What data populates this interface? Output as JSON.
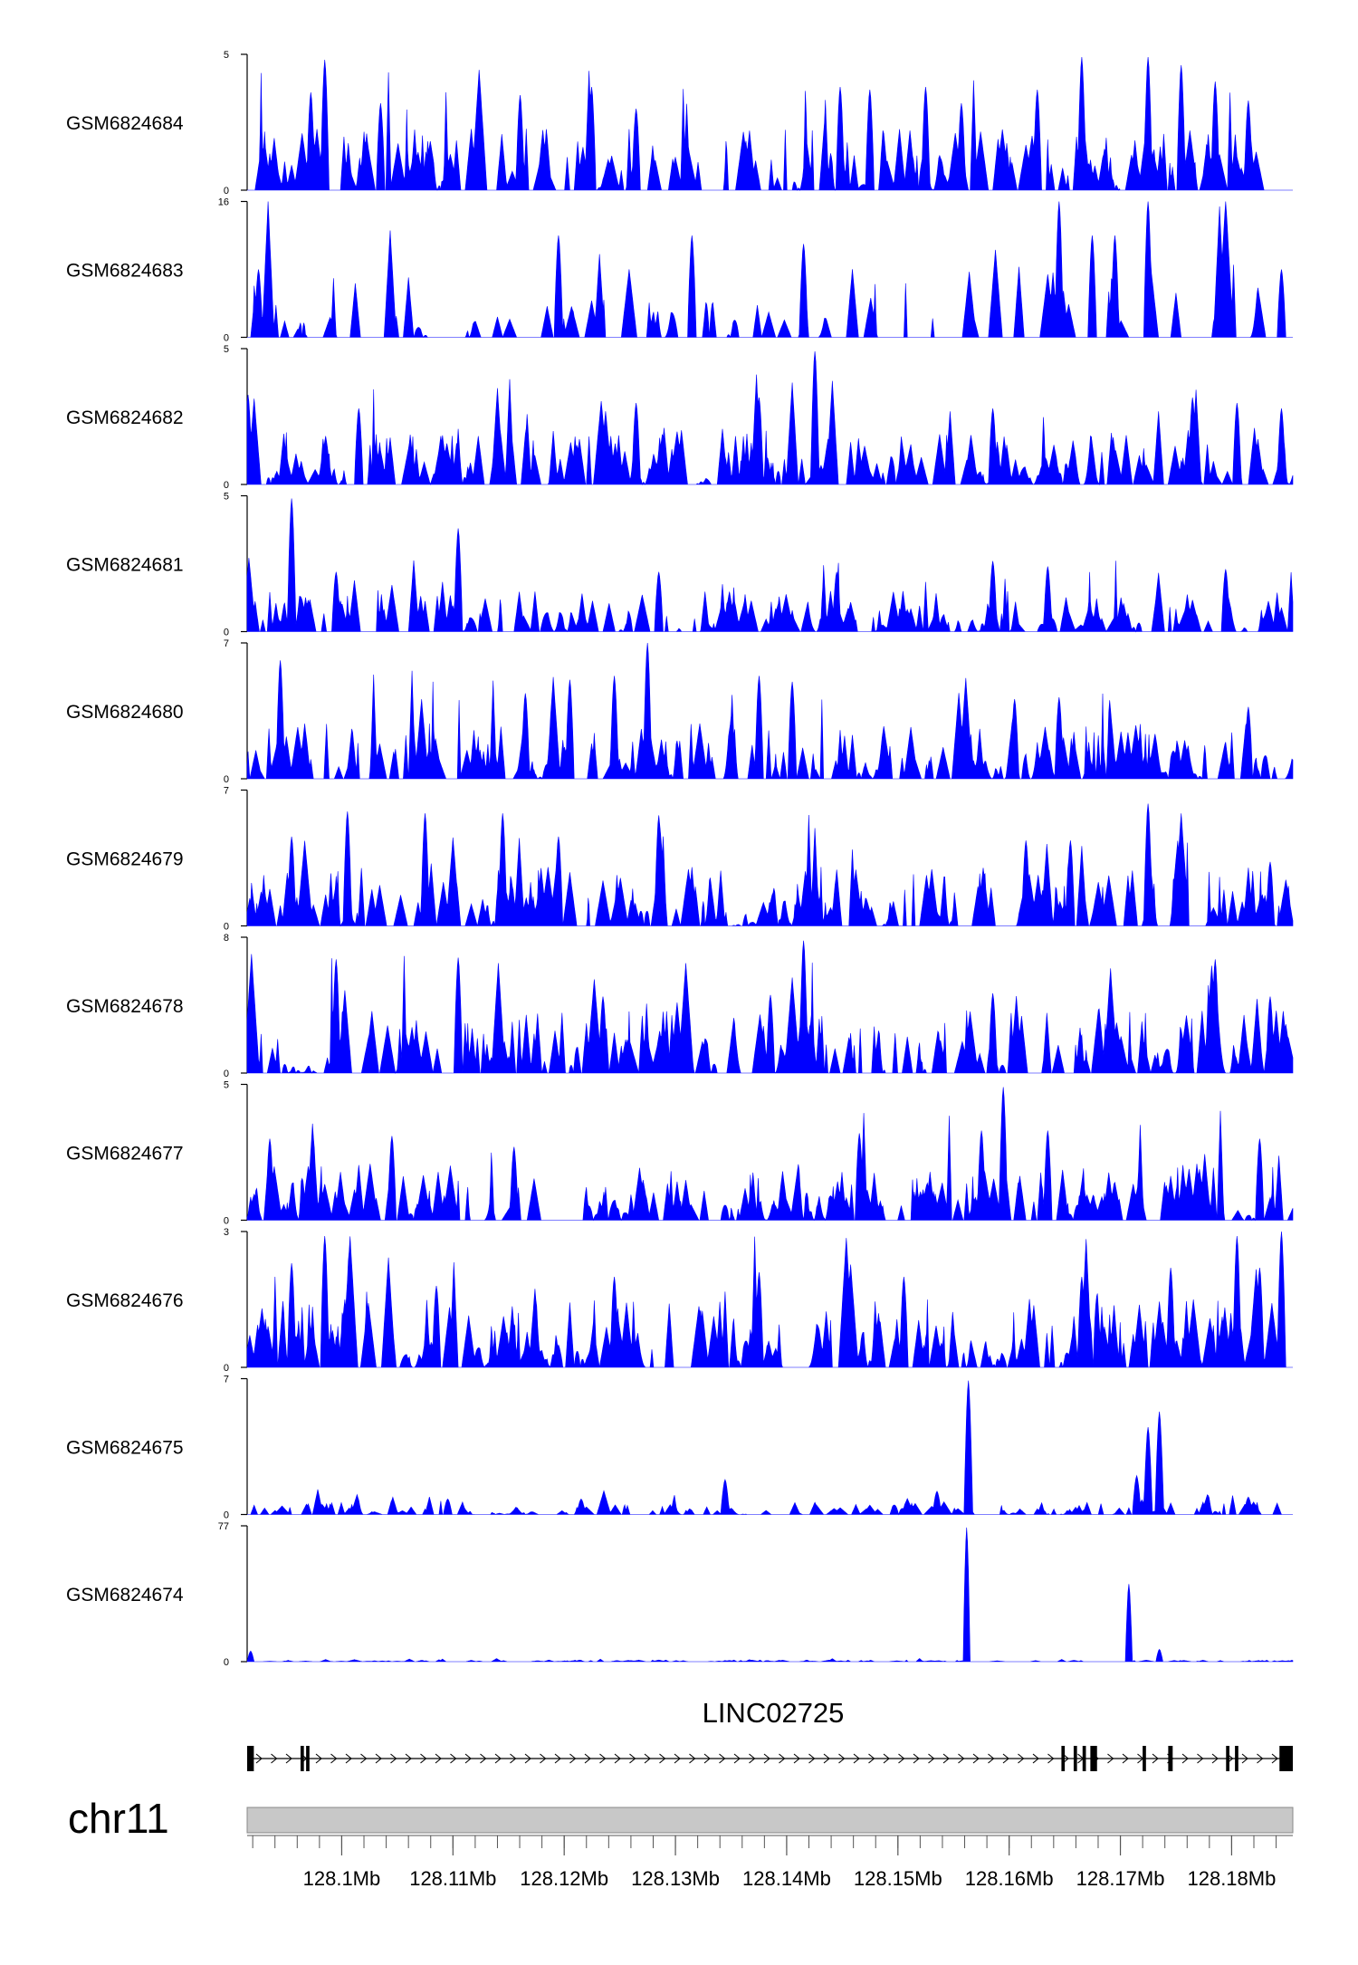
{
  "colors": {
    "signal": "#0000ff",
    "axis": "#000000",
    "gene": "#000000",
    "chrom_bar": "#c8c8c8",
    "chrom_bar_edge": "#888888",
    "ruler": "#555555"
  },
  "chart_data": {
    "type": "area",
    "description_free": true,
    "xlim": [
      128.0915,
      128.1855
    ],
    "x_units": "Mb",
    "tracks": [
      {
        "name": "GSM6824684",
        "ymin": 0,
        "ymax": 5,
        "ytick_min": "0",
        "ytick_max": "5",
        "peaks": [
          [
            128.0985,
            4.8
          ],
          [
            128.0972,
            3.6
          ],
          [
            128.1035,
            3.2
          ],
          [
            128.116,
            3.5
          ],
          [
            128.1225,
            3.8
          ],
          [
            128.1265,
            3.0
          ],
          [
            128.1448,
            3.8
          ],
          [
            128.1475,
            3.7
          ],
          [
            128.1525,
            3.8
          ],
          [
            128.1557,
            3.2
          ],
          [
            128.1625,
            3.7
          ],
          [
            128.1665,
            4.9
          ],
          [
            128.1725,
            4.9
          ],
          [
            128.1755,
            4.6
          ],
          [
            128.1785,
            4.0
          ],
          [
            128.1815,
            3.3
          ]
        ],
        "base": 1.2,
        "density": 210
      },
      {
        "name": "GSM6824683",
        "ymin": 0,
        "ymax": 16,
        "ytick_min": "0",
        "ytick_max": "16",
        "peaks": [
          [
            128.0925,
            8.0
          ],
          [
            128.1195,
            12.0
          ],
          [
            128.1315,
            12.0
          ],
          [
            128.1415,
            11.0
          ],
          [
            128.1645,
            16.0
          ],
          [
            128.1675,
            12.0
          ],
          [
            128.1695,
            12.0
          ],
          [
            128.1725,
            16.0
          ],
          [
            128.1845,
            8.0
          ]
        ],
        "base": 4.5,
        "density": 70
      },
      {
        "name": "GSM6824682",
        "ymin": 0,
        "ymax": 5,
        "ytick_min": "0",
        "ytick_max": "5",
        "peaks": [
          [
            128.1425,
            4.9
          ],
          [
            128.1375,
            3.2
          ],
          [
            128.1015,
            2.8
          ],
          [
            128.1265,
            3.0
          ],
          [
            128.1585,
            2.8
          ],
          [
            128.1765,
            3.2
          ],
          [
            128.1805,
            3.0
          ],
          [
            128.1845,
            2.8
          ],
          [
            128.0916,
            3.3
          ]
        ],
        "base": 1.1,
        "density": 200
      },
      {
        "name": "GSM6824681",
        "ymin": 0,
        "ymax": 5,
        "ytick_min": "0",
        "ytick_max": "5",
        "peaks": [
          [
            128.0955,
            4.9
          ],
          [
            128.1105,
            3.8
          ],
          [
            128.0995,
            2.2
          ],
          [
            128.1285,
            2.2
          ],
          [
            128.1445,
            2.2
          ],
          [
            128.1585,
            2.6
          ],
          [
            128.1635,
            2.4
          ],
          [
            128.1795,
            2.3
          ]
        ],
        "base": 0.8,
        "density": 200
      },
      {
        "name": "GSM6824680",
        "ymin": 0,
        "ymax": 7,
        "ytick_min": "0",
        "ytick_max": "7",
        "peaks": [
          [
            128.0945,
            6.1
          ],
          [
            128.1275,
            7.0
          ],
          [
            128.1245,
            5.3
          ],
          [
            128.1205,
            5.1
          ],
          [
            128.1375,
            5.3
          ],
          [
            128.1405,
            5.0
          ],
          [
            128.1165,
            4.4
          ],
          [
            128.1645,
            4.2
          ],
          [
            128.1605,
            4.1
          ],
          [
            128.1815,
            3.7
          ]
        ],
        "base": 1.5,
        "density": 200
      },
      {
        "name": "GSM6824679",
        "ymin": 0,
        "ymax": 7,
        "ytick_min": "0",
        "ytick_max": "7",
        "peaks": [
          [
            128.1725,
            6.3
          ],
          [
            128.1145,
            5.8
          ],
          [
            128.1075,
            5.8
          ],
          [
            128.1005,
            5.9
          ],
          [
            128.1285,
            5.7
          ],
          [
            128.1195,
            4.6
          ],
          [
            128.1615,
            4.4
          ],
          [
            128.1655,
            4.4
          ],
          [
            128.0955,
            4.6
          ],
          [
            128.1835,
            3.3
          ]
        ],
        "base": 1.6,
        "density": 200
      },
      {
        "name": "GSM6824678",
        "ymin": 0,
        "ymax": 8,
        "ytick_min": "0",
        "ytick_max": "8",
        "peaks": [
          [
            128.1415,
            7.8
          ],
          [
            128.0995,
            6.7
          ],
          [
            128.1105,
            6.8
          ],
          [
            128.1785,
            6.7
          ],
          [
            128.1235,
            4.5
          ],
          [
            128.1385,
            4.6
          ],
          [
            128.1585,
            4.7
          ],
          [
            128.1835,
            4.5
          ]
        ],
        "base": 2.0,
        "density": 200
      },
      {
        "name": "GSM6824677",
        "ymin": 0,
        "ymax": 5,
        "ytick_min": "0",
        "ytick_max": "5",
        "peaks": [
          [
            128.1595,
            4.9
          ],
          [
            128.1575,
            3.3
          ],
          [
            128.1635,
            3.3
          ],
          [
            128.0935,
            3.0
          ],
          [
            128.1045,
            3.1
          ],
          [
            128.1155,
            2.7
          ],
          [
            128.1465,
            3.2
          ],
          [
            128.1825,
            3.0
          ]
        ],
        "base": 1.1,
        "density": 210
      },
      {
        "name": "GSM6824676",
        "ymin": 0,
        "ymax": 3,
        "ytick_min": "0",
        "ytick_max": "3",
        "peaks": [
          [
            128.0985,
            2.9
          ],
          [
            128.1845,
            3.0
          ],
          [
            128.1805,
            2.9
          ],
          [
            128.0955,
            2.3
          ],
          [
            128.1085,
            1.8
          ],
          [
            128.1245,
            2.0
          ],
          [
            128.1375,
            2.1
          ],
          [
            128.1505,
            2.0
          ],
          [
            128.1665,
            2.0
          ],
          [
            128.1745,
            2.2
          ],
          [
            128.1825,
            2.2
          ]
        ],
        "base": 0.8,
        "density": 200
      },
      {
        "name": "GSM6824675",
        "ymin": 0,
        "ymax": 7,
        "ytick_min": "0",
        "ytick_max": "7",
        "peaks": [
          [
            128.1563,
            6.9
          ],
          [
            128.1735,
            5.3
          ],
          [
            128.1715,
            2.0
          ],
          [
            128.1725,
            4.5
          ],
          [
            128.1345,
            1.8
          ],
          [
            128.1535,
            1.2
          ],
          [
            128.1095,
            0.8
          ],
          [
            128.1215,
            0.8
          ],
          [
            128.1815,
            0.9
          ]
        ],
        "base": 0.35,
        "density": 150
      },
      {
        "name": "GSM6824674",
        "ymin": 0,
        "ymax": 77,
        "ytick_min": "0",
        "ytick_max": "77",
        "peaks": [
          [
            128.1562,
            76.0
          ],
          [
            128.1708,
            44.0
          ],
          [
            128.1735,
            7.0
          ],
          [
            128.0918,
            6.0
          ]
        ],
        "base": 0.5,
        "density": 120
      }
    ],
    "gene": {
      "name": "LINC02725",
      "strand": "+",
      "start": 128.0915,
      "end": 128.1855,
      "exons": [
        [
          128.0915,
          128.0921
        ],
        [
          128.0963,
          128.0966
        ],
        [
          128.0968,
          128.0971
        ],
        [
          128.1647,
          128.165
        ],
        [
          128.1658,
          128.1661
        ],
        [
          128.1666,
          128.1669
        ],
        [
          128.1673,
          128.1679
        ],
        [
          128.172,
          128.1723
        ],
        [
          128.1743,
          128.1747
        ],
        [
          128.1795,
          128.1798
        ],
        [
          128.1803,
          128.1806
        ],
        [
          128.1843,
          128.1855
        ]
      ]
    },
    "chromosome": "chr11",
    "ticks": [
      "128.1Mb",
      "128.11Mb",
      "128.12Mb",
      "128.13Mb",
      "128.14Mb",
      "128.15Mb",
      "128.16Mb",
      "128.17Mb",
      "128.18Mb"
    ],
    "tick_values": [
      128.1,
      128.11,
      128.12,
      128.13,
      128.14,
      128.15,
      128.16,
      128.17,
      128.18
    ],
    "minor_tick_step": 0.002
  }
}
